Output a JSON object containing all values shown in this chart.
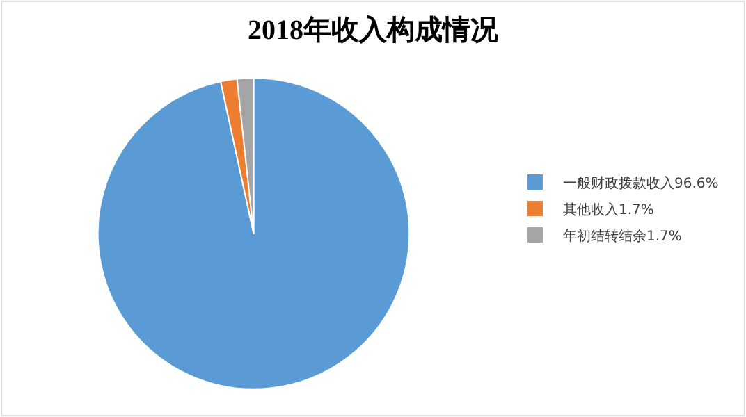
{
  "chart_data": {
    "type": "pie",
    "title": "2018年收入构成情况",
    "categories": [
      "一般财政拨款收入96.6%",
      "其他收入1.7%",
      "年初结转结余1.7%"
    ],
    "values": [
      96.6,
      1.7,
      1.7
    ],
    "colors": [
      "#5b9bd5",
      "#ed7d31",
      "#a5a5a5"
    ],
    "legend": "right"
  }
}
